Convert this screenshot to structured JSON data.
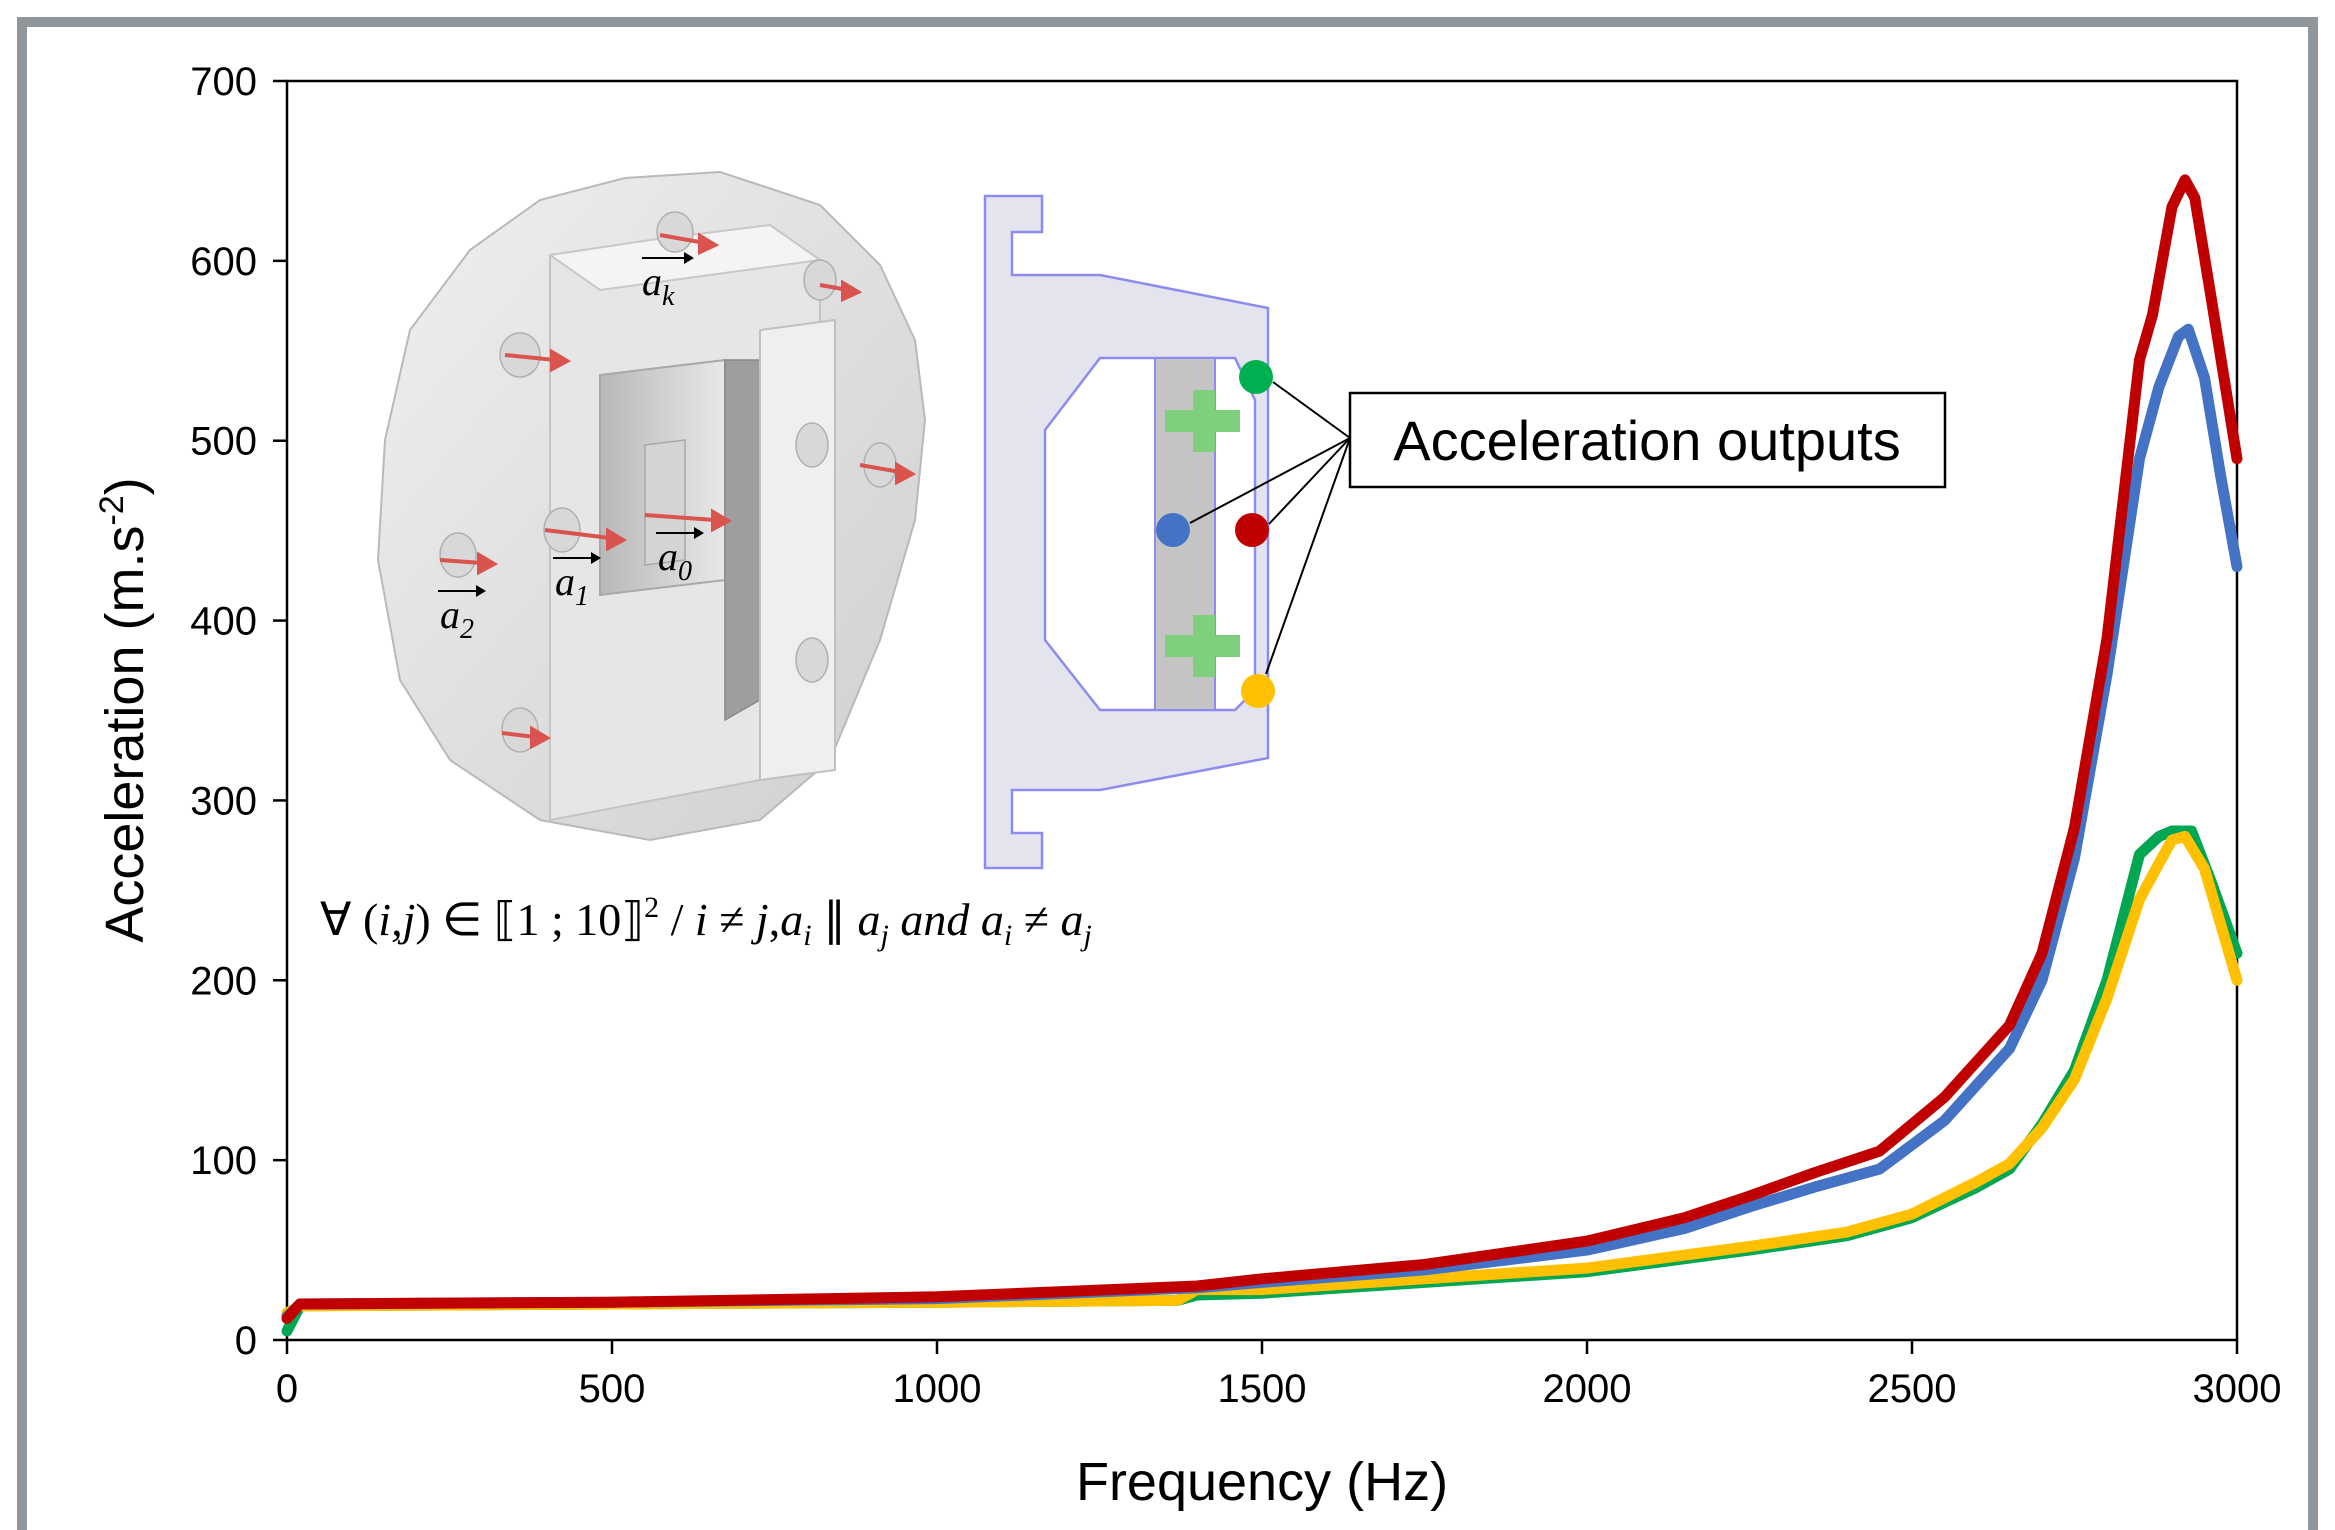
{
  "chart_data": {
    "type": "line",
    "title": "",
    "xlabel": "Frequency (Hz)",
    "ylabel": "Acceleration (m.s",
    "ylabel_exp": "-2",
    "ylabel_close": ")",
    "xlim": [
      0,
      3000
    ],
    "ylim": [
      0,
      700
    ],
    "xticks": [
      0,
      500,
      1000,
      1500,
      2000,
      2500,
      3000
    ],
    "yticks": [
      0,
      100,
      200,
      300,
      400,
      500,
      600,
      700
    ],
    "grid": false,
    "legend": "none",
    "series": [
      {
        "color": "#c00000",
        "x": [
          0,
          20,
          500,
          1000,
          1400,
          1500,
          1750,
          2000,
          2150,
          2250,
          2350,
          2450,
          2550,
          2650,
          2700,
          2750,
          2800,
          2850,
          2870,
          2900,
          2920,
          2935,
          2960,
          3000
        ],
        "y": [
          12,
          20,
          21,
          24,
          30,
          34,
          42,
          55,
          68,
          80,
          93,
          105,
          135,
          175,
          215,
          285,
          390,
          545,
          570,
          630,
          645,
          635,
          580,
          490
        ]
      },
      {
        "color": "#4472c4",
        "x": [
          0,
          20,
          500,
          1000,
          1400,
          1500,
          1750,
          2000,
          2150,
          2250,
          2350,
          2450,
          2550,
          2650,
          2700,
          2750,
          2800,
          2850,
          2880,
          2910,
          2925,
          2950,
          2975,
          3000
        ],
        "y": [
          13,
          20,
          21,
          23,
          29,
          32,
          39,
          50,
          62,
          74,
          85,
          95,
          122,
          162,
          200,
          268,
          370,
          490,
          530,
          558,
          562,
          535,
          480,
          430
        ]
      },
      {
        "color": "#00a651",
        "x": [
          0,
          20,
          500,
          1000,
          1370,
          1400,
          1500,
          1750,
          2000,
          2250,
          2400,
          2500,
          2600,
          2650,
          2700,
          2750,
          2800,
          2850,
          2880,
          2900,
          2930,
          2960,
          3000
        ],
        "y": [
          5,
          19,
          20,
          21,
          22,
          25,
          26,
          32,
          38,
          50,
          58,
          68,
          85,
          95,
          120,
          150,
          200,
          270,
          280,
          283,
          283,
          255,
          215
        ]
      },
      {
        "color": "#ffc000",
        "x": [
          0,
          20,
          500,
          1000,
          1370,
          1400,
          1500,
          1750,
          2000,
          2250,
          2400,
          2500,
          2600,
          2650,
          2700,
          2750,
          2800,
          2850,
          2880,
          2900,
          2920,
          2950,
          3000
        ],
        "y": [
          15,
          19,
          20,
          21,
          22,
          28,
          28,
          34,
          40,
          52,
          60,
          70,
          88,
          98,
          118,
          145,
          190,
          245,
          265,
          278,
          280,
          262,
          200
        ]
      }
    ]
  },
  "inset": {
    "callout_label": "Acceleration outputs",
    "vector_labels": [
      {
        "base": "a",
        "sub": "k"
      },
      {
        "base": "a",
        "sub": "0"
      },
      {
        "base": "a",
        "sub": "1"
      },
      {
        "base": "a",
        "sub": "2"
      }
    ],
    "formula": {
      "forall": "∀ (",
      "vars": "i,j",
      "in": ") ∈ ⟦1 ; 10⟧",
      "exp": "2",
      "rest1": " / ",
      "i": "i",
      "neq": " ≠ ",
      "j": "j",
      "comma": ",",
      "ai": "a",
      "ai_sub": "i",
      "par": " ∥ ",
      "aj": "a",
      "aj_sub": "j",
      "and": " and ",
      "ai2": "a",
      "ai2_sub": "i",
      "neq2": " ≠ ",
      "aj2": "a",
      "aj2_sub": "j"
    },
    "sensor_colors": {
      "green": "#00b050",
      "red": "#c00000",
      "blue": "#4472c4",
      "yellow": "#ffc000"
    }
  }
}
